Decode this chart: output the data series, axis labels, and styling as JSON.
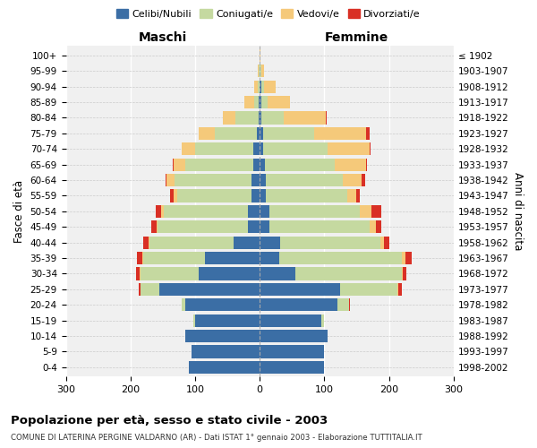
{
  "age_groups": [
    "0-4",
    "5-9",
    "10-14",
    "15-19",
    "20-24",
    "25-29",
    "30-34",
    "35-39",
    "40-44",
    "45-49",
    "50-54",
    "55-59",
    "60-64",
    "65-69",
    "70-74",
    "75-79",
    "80-84",
    "85-89",
    "90-94",
    "95-99",
    "100+"
  ],
  "birth_years": [
    "1998-2002",
    "1993-1997",
    "1988-1992",
    "1983-1987",
    "1978-1982",
    "1973-1977",
    "1968-1972",
    "1963-1967",
    "1958-1962",
    "1953-1957",
    "1948-1952",
    "1943-1947",
    "1938-1942",
    "1933-1937",
    "1928-1932",
    "1923-1927",
    "1918-1922",
    "1913-1917",
    "1908-1912",
    "1903-1907",
    "≤ 1902"
  ],
  "males": {
    "celibi": [
      110,
      105,
      115,
      100,
      115,
      155,
      95,
      85,
      40,
      18,
      18,
      13,
      12,
      10,
      10,
      5,
      2,
      1,
      0,
      0,
      0
    ],
    "coniugati": [
      0,
      0,
      0,
      2,
      5,
      30,
      90,
      95,
      130,
      140,
      130,
      115,
      120,
      105,
      90,
      65,
      35,
      8,
      3,
      1,
      0
    ],
    "vedovi": [
      0,
      0,
      0,
      0,
      0,
      0,
      1,
      2,
      2,
      2,
      5,
      5,
      12,
      18,
      20,
      25,
      20,
      15,
      5,
      2,
      0
    ],
    "divorziati": [
      0,
      0,
      0,
      0,
      0,
      2,
      5,
      8,
      8,
      8,
      8,
      5,
      2,
      2,
      0,
      0,
      0,
      0,
      0,
      0,
      0
    ]
  },
  "females": {
    "nubili": [
      100,
      100,
      105,
      95,
      120,
      125,
      55,
      30,
      32,
      15,
      15,
      10,
      10,
      8,
      5,
      5,
      2,
      2,
      2,
      0,
      0
    ],
    "coniugate": [
      0,
      0,
      0,
      5,
      18,
      88,
      165,
      190,
      155,
      155,
      140,
      125,
      118,
      108,
      100,
      80,
      35,
      10,
      5,
      2,
      0
    ],
    "vedove": [
      0,
      0,
      0,
      0,
      0,
      2,
      2,
      5,
      5,
      10,
      18,
      15,
      30,
      48,
      65,
      80,
      65,
      35,
      18,
      5,
      1
    ],
    "divorziate": [
      0,
      0,
      0,
      0,
      2,
      5,
      5,
      10,
      8,
      8,
      15,
      5,
      5,
      2,
      2,
      5,
      2,
      0,
      0,
      0,
      0
    ]
  },
  "colors": {
    "celibi": "#3B6EA5",
    "coniugati": "#C5D9A0",
    "vedovi": "#F5C97A",
    "divorziati": "#D93025"
  },
  "xlim": 300,
  "title": "Popolazione per età, sesso e stato civile - 2003",
  "subtitle": "COMUNE DI LATERINA PERGINE VALDARNO (AR) - Dati ISTAT 1° gennaio 2003 - Elaborazione TUTTITALIA.IT",
  "legend_labels": [
    "Celibi/Nubili",
    "Coniugati/e",
    "Vedovi/e",
    "Divorziati/e"
  ],
  "left_label": "Maschi",
  "right_label": "Femmine",
  "ylabel": "Fasce di età",
  "ylabel_right": "Anni di nascita",
  "xticks": [
    -300,
    -200,
    -100,
    0,
    100,
    200,
    300
  ],
  "xtick_labels": [
    "300",
    "200",
    "100",
    "0",
    "100",
    "200",
    "300"
  ],
  "bg_color": "#f0f0f0"
}
